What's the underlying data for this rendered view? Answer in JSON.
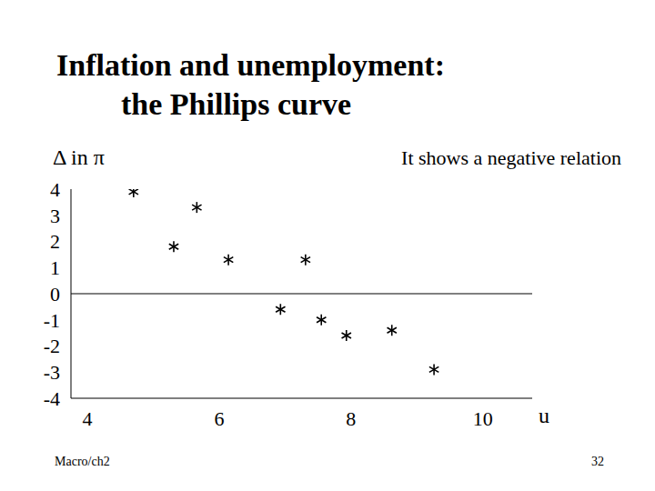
{
  "chart_data": {
    "type": "scatter",
    "title": "Inflation and unemployment:\nthe Phillips curve",
    "y_label": "Δ in π",
    "x_label": "u",
    "annotations": [
      "It shows a negative relation"
    ],
    "footer": "Macro/ch2",
    "page_number": 32,
    "x": [
      4.7,
      5.66,
      5.31,
      6.14,
      7.31,
      6.93,
      7.55,
      7.93,
      8.62,
      9.26
    ],
    "values": [
      3.9,
      3.3,
      1.8,
      1.3,
      1.3,
      -0.6,
      -1.0,
      -1.6,
      -1.4,
      -2.9
    ],
    "color": "#000000",
    "marker": "asterisk",
    "xlim": [
      3.75,
      10.75
    ],
    "xticks": [
      4,
      6,
      8,
      10
    ],
    "ylim": [
      -4,
      4
    ],
    "yticks": [
      4,
      3,
      2,
      1,
      0,
      -1,
      -2,
      -3,
      -4
    ],
    "hlines": [
      0
    ],
    "grid": false
  }
}
